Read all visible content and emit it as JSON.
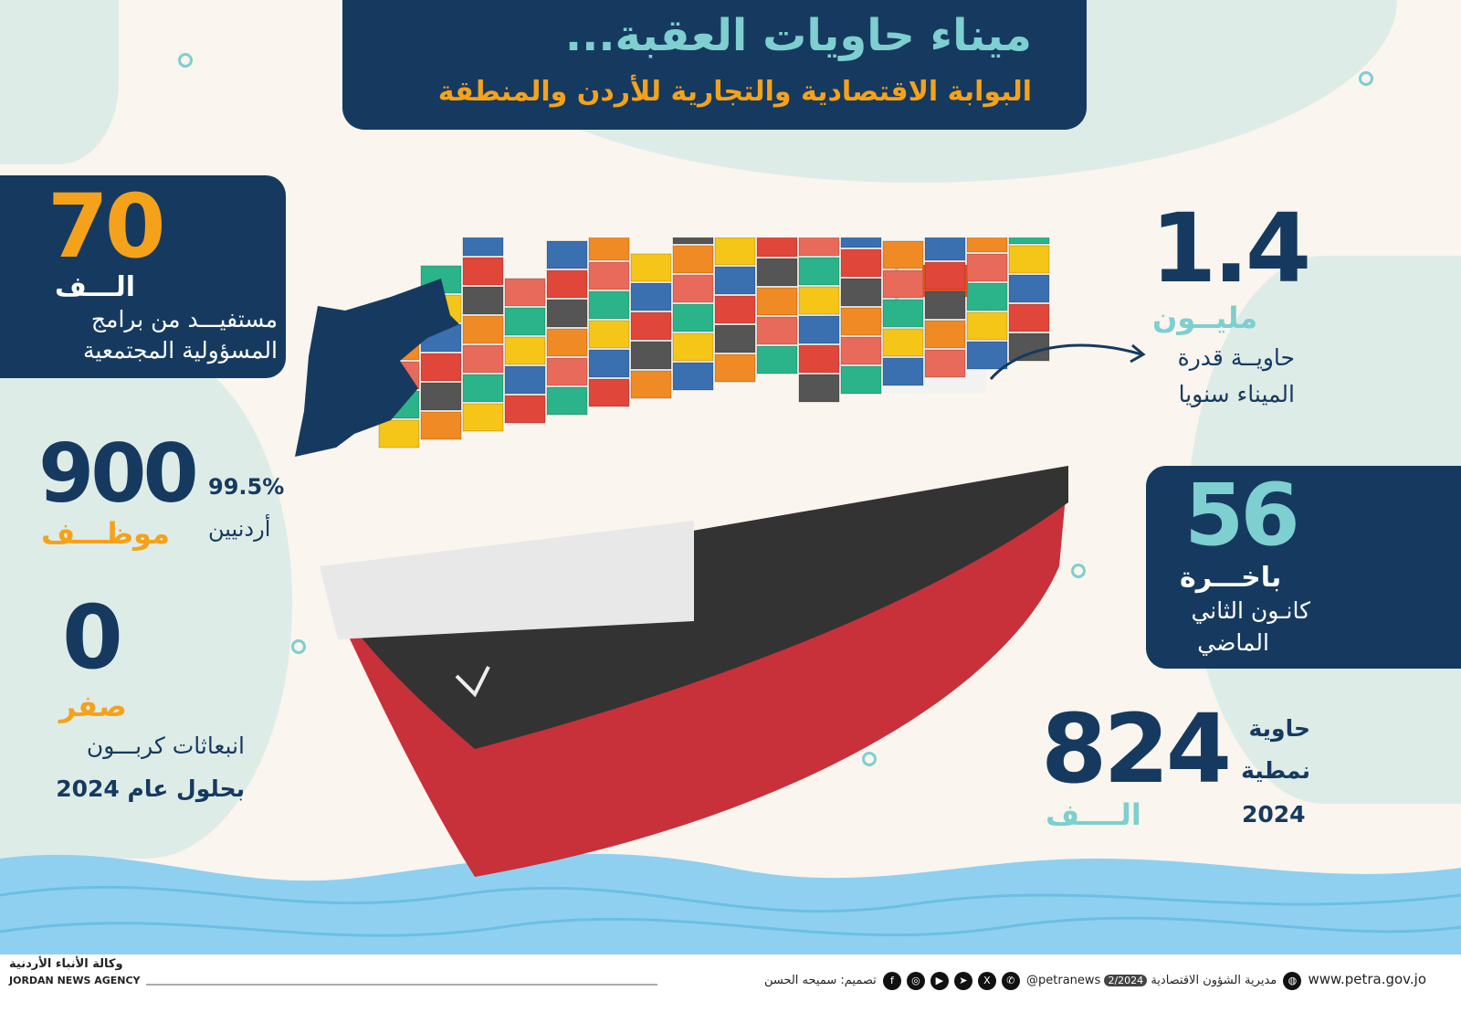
{
  "title": "ميناء حاويات العقبة...",
  "subtitle": "البوابة الاقتصادية والتجارية للأردن والمنطقة",
  "colors": {
    "navy": "#163a5f",
    "orange": "#f5a21b",
    "teal": "#7ecfcf",
    "wave": "#8fd0f0"
  },
  "stats": {
    "beneficiaries": {
      "number": "70",
      "unit": "الـــف",
      "line1": "مستفيـــد من برامج",
      "line2": "المسؤولية المجتمعية"
    },
    "employees": {
      "number": "900",
      "unit": "موظـــف",
      "percent": "99.5%",
      "label": "أردنيين"
    },
    "emissions": {
      "number": "0",
      "unit": "صفر",
      "line1": "انبعاثات كربـــون",
      "line2": "بحلول عام 2024"
    },
    "capacity": {
      "number": "1.4",
      "unit": "مليــون",
      "line1": "حاويــة قدرة",
      "line2": "الميناء سنويا"
    },
    "ships": {
      "number": "56",
      "unit": "باخـــرة",
      "line1": "كانـون الثاني",
      "line2": "الماضي"
    },
    "containers": {
      "number": "824",
      "unit": "الــــف",
      "line1": "حاوية",
      "line2": "نمطية",
      "line3": "2024"
    }
  },
  "footer": {
    "agency_ar": "وكالة الأنباء الأردنية",
    "agency_en": "JORDAN NEWS AGENCY",
    "designer": "تصميم: سميحه الحسن",
    "handle": "@petranews",
    "date": "2/2024",
    "department": "مديرية الشؤون الاقتصادية",
    "website": "www.petra.gov.jo",
    "social_icons": [
      "facebook-icon",
      "instagram-icon",
      "youtube-icon",
      "telegram-icon",
      "x-icon",
      "whatsapp-icon",
      "globe-icon"
    ]
  }
}
